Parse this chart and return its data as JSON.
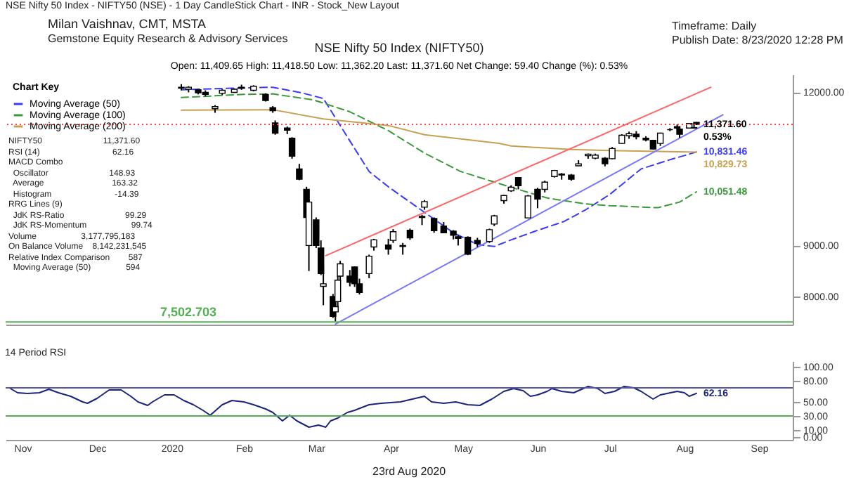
{
  "chart_data": [
    {
      "type": "candlestick",
      "title": "NSE Nifty 50 Index (NIFTY50)",
      "subtitle": "Open: 11,409.65    High: 11,418.50    Low: 11,362.20    Last: 11,371.60     Net Change: 59.40          Change (%): 0.53%",
      "legend_title": "Chart Key",
      "legend": "top left",
      "tick_labels": "y",
      "color": "#000000",
      "annotations": [
        "NSE Nifty 50 Index - NIFTY50 (NSE) - 1 Day CandleStick Chart - INR - Stock_New Layout",
        "Milan Vaishnav, CMT, MSTA",
        "Gemstone Equity Research & Advisory Services",
        "Timeframe: Daily",
        "Publish Date: 8/23/2020 12:28 PM",
        "NIFTY50                          11,371.60",
        "RSI (14)                               62.16",
        "MACD Combo",
        "  Oscillator                          148.93",
        "  Average                             163.32",
        "  Histogram                           -14.39",
        "RRG Lines (9)",
        "  JdK RS-Ratio                          99.29",
        "  JdK RS-Momentum                   99.74",
        "Volume                   3,177,795,183",
        "On Balance Volume    8,142,231,545",
        "Relative Index Comparison        587",
        "  Moving Average (50)               594",
        "23rd Aug 2020",
        {
          "text": "11,371.60",
          "x": "2020-08-21",
          "y": 11371.6
        },
        {
          "text": "0.53%",
          "x": "2020-08-21",
          "y": 11371.6
        }
      ],
      "xlim": [
        "2019-11-08",
        "2020-09-30"
      ],
      "ylim": [
        7450,
        12350
      ],
      "yticks": [
        {
          "value": 8000,
          "label": "8000.00"
        },
        {
          "value": 9000,
          "label": "9000.00"
        },
        {
          "value": 12000,
          "label": "12000.00"
        }
      ],
      "x": [
        "2020-01-20",
        "2020-01-23",
        "2020-01-27",
        "2020-01-30",
        "2020-02-03",
        "2020-02-06",
        "2020-02-11",
        "2020-02-14",
        "2020-02-19",
        "2020-02-24",
        "2020-02-27",
        "2020-02-28",
        "2020-03-04",
        "2020-03-06",
        "2020-03-09",
        "2020-03-12",
        "2020-03-13",
        "2020-03-16",
        "2020-03-18",
        "2020-03-19",
        "2020-03-23",
        "2020-03-24",
        "2020-03-25",
        "2020-03-26",
        "2020-03-30",
        "2020-04-01",
        "2020-04-03",
        "2020-04-07",
        "2020-04-09",
        "2020-04-15",
        "2020-04-17",
        "2020-04-21",
        "2020-04-24",
        "2020-04-29",
        "2020-04-30",
        "2020-05-04",
        "2020-05-08",
        "2020-05-12",
        "2020-05-14",
        "2020-05-18",
        "2020-05-22",
        "2020-05-27",
        "2020-05-29",
        "2020-06-02",
        "2020-06-05",
        "2020-06-08",
        "2020-06-12",
        "2020-06-16",
        "2020-06-19",
        "2020-06-23",
        "2020-06-26",
        "2020-06-30",
        "2020-07-03",
        "2020-07-07",
        "2020-07-10",
        "2020-07-14",
        "2020-07-17",
        "2020-07-21",
        "2020-07-24",
        "2020-07-27",
        "2020-07-31",
        "2020-08-03",
        "2020-08-06",
        "2020-08-10",
        "2020-08-13",
        "2020-08-14",
        "2020-08-18",
        "2020-08-20",
        "2020-08-21"
      ],
      "ohlc": [
        [
          12100,
          12160,
          12040,
          12080
        ],
        [
          12060,
          12120,
          12000,
          12100
        ],
        [
          12050,
          12070,
          11960,
          11990
        ],
        [
          12000,
          12040,
          11920,
          11960
        ],
        [
          11680,
          11750,
          11600,
          11720
        ],
        [
          11980,
          12060,
          11950,
          12040
        ],
        [
          12000,
          12080,
          11990,
          12060
        ],
        [
          12100,
          12150,
          12050,
          12080
        ],
        [
          12040,
          12140,
          12020,
          12120
        ],
        [
          11960,
          11980,
          11820,
          11840
        ],
        [
          11700,
          11730,
          11600,
          11640
        ],
        [
          11400,
          11450,
          11170,
          11200
        ],
        [
          11300,
          11330,
          11180,
          11260
        ],
        [
          11100,
          11120,
          10700,
          10750
        ],
        [
          10500,
          10600,
          10280,
          10300
        ],
        [
          10100,
          10150,
          9500,
          9550
        ],
        [
          9000,
          9900,
          8500,
          9850
        ],
        [
          9500,
          9550,
          8950,
          9000
        ],
        [
          8950,
          9100,
          8420,
          8450
        ],
        [
          8200,
          8600,
          7830,
          8250
        ],
        [
          8000,
          8050,
          7580,
          7610
        ],
        [
          7700,
          7950,
          7510,
          7800
        ],
        [
          7900,
          8400,
          7780,
          8320
        ],
        [
          8400,
          8700,
          8300,
          8640
        ],
        [
          8400,
          8520,
          8200,
          8280
        ],
        [
          8580,
          8590,
          8190,
          8250
        ],
        [
          8250,
          8350,
          8040,
          8080
        ],
        [
          8450,
          8820,
          8360,
          8790
        ],
        [
          8970,
          9130,
          8900,
          9110
        ],
        [
          9010,
          9130,
          8820,
          8930
        ],
        [
          9100,
          9320,
          9050,
          9270
        ],
        [
          9000,
          9050,
          8820,
          8980
        ],
        [
          9300,
          9330,
          9110,
          9150
        ],
        [
          9550,
          9600,
          9400,
          9570
        ],
        [
          9750,
          9890,
          9700,
          9860
        ],
        [
          9530,
          9550,
          9250,
          9290
        ],
        [
          9380,
          9460,
          9240,
          9250
        ],
        [
          9280,
          9300,
          9120,
          9200
        ],
        [
          9170,
          9200,
          9000,
          9140
        ],
        [
          9160,
          9180,
          8810,
          8830
        ],
        [
          9100,
          9150,
          8970,
          9040
        ],
        [
          9080,
          9330,
          9050,
          9310
        ],
        [
          9420,
          9600,
          9380,
          9580
        ],
        [
          9880,
          9990,
          9820,
          9980
        ],
        [
          10070,
          10180,
          10050,
          10140
        ],
        [
          10330,
          10330,
          10100,
          10170
        ],
        [
          9540,
          9990,
          9540,
          9970
        ],
        [
          10100,
          10130,
          9730,
          9910
        ],
        [
          10100,
          10270,
          10040,
          10240
        ],
        [
          10350,
          10480,
          10330,
          10470
        ],
        [
          10400,
          10420,
          10290,
          10380
        ],
        [
          10380,
          10400,
          10270,
          10300
        ],
        [
          10560,
          10670,
          10560,
          10600
        ],
        [
          10760,
          10800,
          10700,
          10790
        ],
        [
          10710,
          10800,
          10690,
          10770
        ],
        [
          10710,
          10730,
          10550,
          10600
        ],
        [
          10700,
          10930,
          10690,
          10900
        ],
        [
          11000,
          11180,
          10990,
          11160
        ],
        [
          11150,
          11230,
          11090,
          11190
        ],
        [
          11180,
          11240,
          11080,
          11130
        ],
        [
          11100,
          11140,
          11040,
          11070
        ],
        [
          11060,
          11060,
          10880,
          10890
        ],
        [
          11000,
          11210,
          10950,
          11200
        ],
        [
          11270,
          11300,
          11240,
          11270
        ],
        [
          11330,
          11370,
          11280,
          11300
        ],
        [
          11280,
          11300,
          11110,
          11180
        ],
        [
          11300,
          11400,
          11290,
          11390
        ],
        [
          11300,
          11360,
          11290,
          11310
        ],
        [
          11409.65,
          11418.5,
          11362.2,
          11371.6
        ]
      ],
      "series": [
        {
          "name": "Moving Average (50)",
          "type": "line",
          "line_style": "dashed",
          "color": "#3a3aff",
          "x": [
            "2020-01-20",
            "2020-02-10",
            "2020-02-27",
            "2020-03-10",
            "2020-03-19",
            "2020-03-28",
            "2020-04-07",
            "2020-04-15",
            "2020-04-30",
            "2020-05-12",
            "2020-05-22",
            "2020-05-29",
            "2020-06-05",
            "2020-06-15",
            "2020-06-27",
            "2020-07-06",
            "2020-07-16",
            "2020-07-29",
            "2020-08-10",
            "2020-08-21"
          ],
          "values": [
            12050,
            12080,
            12100,
            11990,
            11880,
            11200,
            10450,
            10150,
            9650,
            9250,
            9020,
            8980,
            9110,
            9280,
            9470,
            9700,
            10000,
            10500,
            10680,
            10831.46
          ],
          "value_labels": [
            null,
            null,
            null,
            null,
            null,
            null,
            null,
            null,
            null,
            null,
            null,
            null,
            null,
            null,
            null,
            null,
            null,
            null,
            null,
            "10,831.46"
          ]
        },
        {
          "name": "Moving Average (100)",
          "type": "line",
          "line_style": "dashed",
          "color": "#3a9a3a",
          "x": [
            "2020-01-20",
            "2020-02-15",
            "2020-02-27",
            "2020-03-15",
            "2020-03-30",
            "2020-04-15",
            "2020-04-30",
            "2020-05-15",
            "2020-06-05",
            "2020-06-20",
            "2020-07-05",
            "2020-07-16",
            "2020-08-05",
            "2020-08-14",
            "2020-08-21"
          ],
          "values": [
            11900,
            11960,
            11970,
            11850,
            11620,
            11250,
            10810,
            10450,
            10140,
            9930,
            9820,
            9780,
            9740,
            9850,
            10051.48
          ],
          "value_labels": [
            null,
            null,
            null,
            null,
            null,
            null,
            null,
            null,
            null,
            null,
            null,
            null,
            null,
            null,
            "10,051.48"
          ]
        },
        {
          "name": "Moving Average (200)",
          "type": "line",
          "line_style": "solid",
          "color": "#c8a050",
          "x": [
            "2020-01-20",
            "2020-02-27",
            "2020-03-19",
            "2020-04-15",
            "2020-04-30",
            "2020-05-31",
            "2020-06-05",
            "2020-06-30",
            "2020-07-16",
            "2020-08-21"
          ],
          "values": [
            11650,
            11660,
            11480,
            11350,
            11170,
            11000,
            10950,
            10880,
            10860,
            10829.73
          ],
          "value_labels": [
            null,
            null,
            null,
            null,
            null,
            null,
            null,
            null,
            null,
            "10,829.73"
          ]
        },
        {
          "type": "line",
          "line_style": "solid",
          "color": "#ff6666",
          "x": [
            "2020-03-20",
            "2020-08-27"
          ],
          "values": [
            8800,
            12100
          ]
        },
        {
          "type": "line",
          "line_style": "solid",
          "color": "#7777ff",
          "x": [
            "2020-03-24",
            "2020-09-01"
          ],
          "values": [
            7460,
            11560
          ]
        }
      ],
      "ref_lines": [
        {
          "axis": "y",
          "value": 11371.6,
          "color": "#ff4444",
          "line_style": "dotted"
        },
        {
          "axis": "y",
          "value": 7502.703,
          "label": "7,502.703",
          "color": "#55b055",
          "line_style": "solid"
        }
      ]
    },
    {
      "type": "line",
      "title": "14 Period RSI",
      "xlim": [
        "2019-11-08",
        "2020-09-30"
      ],
      "ylim": [
        -4,
        108
      ],
      "yticks": [
        {
          "value": 0,
          "label": "0.00"
        },
        {
          "value": 10,
          "label": "10.00"
        },
        {
          "value": 30,
          "label": "30.00"
        },
        {
          "value": 50,
          "label": "50.00"
        },
        {
          "value": 80,
          "label": "80.00"
        },
        {
          "value": 100,
          "label": "100.00"
        }
      ],
      "xticks": [
        {
          "value": "2019-11-15",
          "label": "Nov"
        },
        {
          "value": "2019-12-16",
          "label": "Dec"
        },
        {
          "value": "2020-01-16",
          "label": "2020"
        },
        {
          "value": "2020-02-15",
          "label": "Feb"
        },
        {
          "value": "2020-03-16",
          "label": "Mar"
        },
        {
          "value": "2020-04-16",
          "label": "Apr"
        },
        {
          "value": "2020-05-16",
          "label": "May"
        },
        {
          "value": "2020-06-16",
          "label": "Jun"
        },
        {
          "value": "2020-07-16",
          "label": "Jul"
        },
        {
          "value": "2020-08-16",
          "label": "Aug"
        },
        {
          "value": "2020-09-16",
          "label": "Sep"
        }
      ],
      "ref_lines": [
        {
          "axis": "y",
          "value": 70,
          "color": "#5555aa",
          "line_style": "solid"
        },
        {
          "axis": "y",
          "value": 30,
          "color": "#55aa55",
          "line_style": "solid"
        }
      ],
      "series": [
        {
          "color": "#1a237e",
          "line_style": "solid",
          "x": [
            "2019-11-10",
            "2019-11-13",
            "2019-11-17",
            "2019-11-22",
            "2019-11-26",
            "2019-11-30",
            "2019-12-05",
            "2019-12-10",
            "2019-12-12",
            "2019-12-16",
            "2019-12-21",
            "2019-12-26",
            "2019-12-30",
            "2020-01-02",
            "2020-01-06",
            "2020-01-08",
            "2020-01-13",
            "2020-01-17",
            "2020-01-21",
            "2020-01-25",
            "2020-01-29",
            "2020-02-01",
            "2020-02-06",
            "2020-02-10",
            "2020-02-15",
            "2020-02-19",
            "2020-02-24",
            "2020-02-27",
            "2020-03-02",
            "2020-03-05",
            "2020-03-08",
            "2020-03-13",
            "2020-03-17",
            "2020-03-20",
            "2020-03-22",
            "2020-03-25",
            "2020-03-29",
            "2020-04-01",
            "2020-04-07",
            "2020-04-12",
            "2020-04-20",
            "2020-04-25",
            "2020-04-30",
            "2020-05-03",
            "2020-05-08",
            "2020-05-13",
            "2020-05-18",
            "2020-05-23",
            "2020-05-28",
            "2020-06-02",
            "2020-06-06",
            "2020-06-10",
            "2020-06-13",
            "2020-06-16",
            "2020-06-20",
            "2020-06-22",
            "2020-06-26",
            "2020-07-01",
            "2020-07-05",
            "2020-07-07",
            "2020-07-11",
            "2020-07-14",
            "2020-07-18",
            "2020-07-22",
            "2020-07-26",
            "2020-07-29",
            "2020-08-03",
            "2020-08-06",
            "2020-08-13",
            "2020-08-16",
            "2020-08-18",
            "2020-08-21"
          ],
          "values": [
            69,
            63,
            62,
            63,
            68,
            63,
            58,
            50,
            48,
            55,
            67,
            67,
            58,
            50,
            45,
            50,
            60,
            60,
            52,
            46,
            38,
            31,
            46,
            52,
            50,
            46,
            40,
            35,
            23,
            31,
            23,
            14,
            17,
            14,
            23,
            27,
            35,
            38,
            46,
            48,
            50,
            54,
            58,
            50,
            48,
            50,
            46,
            45,
            54,
            65,
            69,
            66,
            58,
            60,
            65,
            69,
            65,
            63,
            69,
            72,
            69,
            62,
            65,
            72,
            70,
            65,
            54,
            60,
            65,
            63,
            58,
            62.16
          ],
          "value_labels": [
            null,
            null,
            null,
            null,
            null,
            null,
            null,
            null,
            null,
            null,
            null,
            null,
            null,
            null,
            null,
            null,
            null,
            null,
            null,
            null,
            null,
            null,
            null,
            null,
            null,
            null,
            null,
            null,
            null,
            null,
            null,
            null,
            null,
            null,
            null,
            null,
            null,
            null,
            null,
            null,
            null,
            null,
            null,
            null,
            null,
            null,
            null,
            null,
            null,
            null,
            null,
            null,
            null,
            null,
            null,
            null,
            null,
            null,
            null,
            null,
            null,
            null,
            null,
            null,
            null,
            null,
            null,
            null,
            null,
            null,
            null,
            "62.16"
          ]
        }
      ]
    }
  ]
}
